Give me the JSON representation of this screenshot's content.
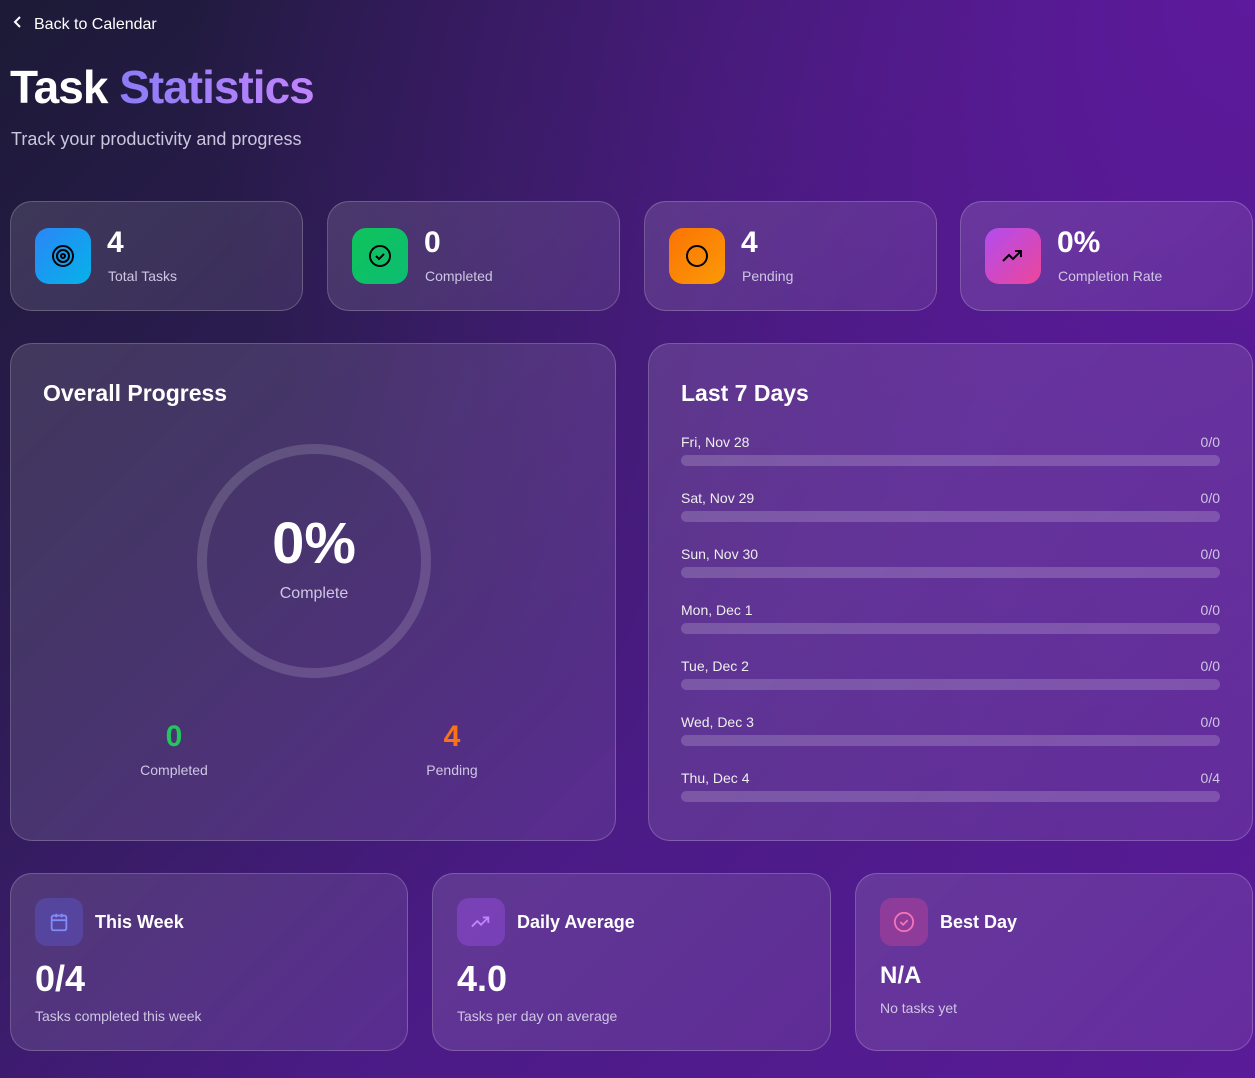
{
  "nav": {
    "back_label": "Back to Calendar"
  },
  "header": {
    "title_a": "Task",
    "title_b": "Statistics",
    "subtitle": "Track your productivity and progress"
  },
  "stats": [
    {
      "value": "4",
      "label": "Total Tasks",
      "icon": "target-icon",
      "color": "#1e8ef7"
    },
    {
      "value": "0",
      "label": "Completed",
      "icon": "check-circle-icon",
      "color": "#10c25f"
    },
    {
      "value": "4",
      "label": "Pending",
      "icon": "circle-icon",
      "color": "#fb8a06"
    },
    {
      "value": "0%",
      "label": "Completion Rate",
      "icon": "trending-up-icon",
      "color": "#c04ae6"
    }
  ],
  "overall": {
    "title": "Overall Progress",
    "percent_label": "0%",
    "percent": 0,
    "complete_label": "Complete",
    "completed_value": "0",
    "completed_label": "Completed",
    "pending_value": "4",
    "pending_label": "Pending"
  },
  "last7": {
    "title": "Last 7 Days",
    "days": [
      {
        "date": "Fri, Nov 28",
        "ratio": "0/0",
        "progress": 0
      },
      {
        "date": "Sat, Nov 29",
        "ratio": "0/0",
        "progress": 0
      },
      {
        "date": "Sun, Nov 30",
        "ratio": "0/0",
        "progress": 0
      },
      {
        "date": "Mon, Dec 1",
        "ratio": "0/0",
        "progress": 0
      },
      {
        "date": "Tue, Dec 2",
        "ratio": "0/0",
        "progress": 0
      },
      {
        "date": "Wed, Dec 3",
        "ratio": "0/0",
        "progress": 0
      },
      {
        "date": "Thu, Dec 4",
        "ratio": "0/4",
        "progress": 0
      }
    ]
  },
  "bottom": [
    {
      "title": "This Week",
      "value": "0/4",
      "sub": "Tasks completed this week",
      "icon": "calendar-icon"
    },
    {
      "title": "Daily Average",
      "value": "4.0",
      "sub": "Tasks per day on average",
      "icon": "trending-up-icon"
    },
    {
      "title": "Best Day",
      "value": "N/A",
      "sub": "No tasks yet",
      "icon": "check-circle-icon"
    }
  ]
}
